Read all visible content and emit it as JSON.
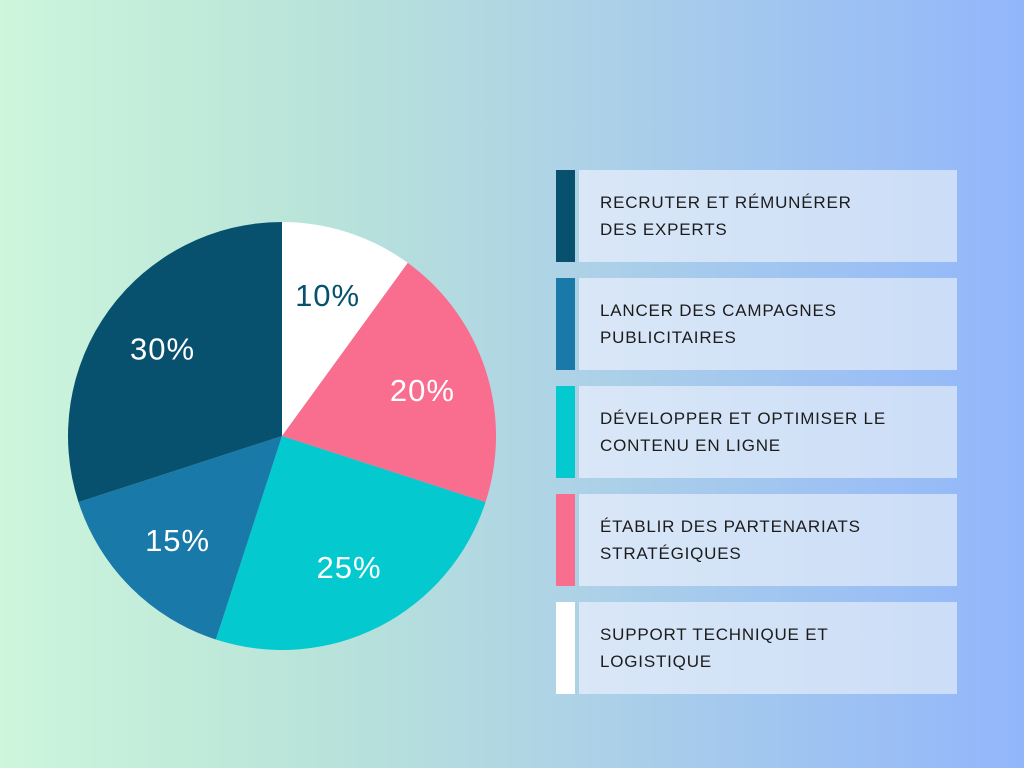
{
  "background": {
    "gradient_left": "#CDF6DC",
    "gradient_right": "#92B6FB"
  },
  "chart_data": {
    "type": "pie",
    "start_angle_deg": 0,
    "direction": "clockwise",
    "legend_position": "right",
    "slices": [
      {
        "label": "SUPPORT TECHNIQUE ET LOGISTIQUE",
        "value": 10,
        "label_text": "10%",
        "color": "#FFFFFF",
        "label_color": "#07516F"
      },
      {
        "label": "ÉTABLIR DES PARTENARIATS STRATÉGIQUES",
        "value": 20,
        "label_text": "20%",
        "color": "#F96D8E",
        "label_color": "#FFFFFF"
      },
      {
        "label": "DÉVELOPPER ET OPTIMISER LE CONTENU EN LIGNE",
        "value": 25,
        "label_text": "25%",
        "color": "#04C9CE",
        "label_color": "#FFFFFF"
      },
      {
        "label": "LANCER DES CAMPAGNES PUBLICITAIRES",
        "value": 15,
        "label_text": "15%",
        "color": "#1979A8",
        "label_color": "#FFFFFF"
      },
      {
        "label": "RECRUTER ET RÉMUNÉRER DES EXPERTS",
        "value": 30,
        "label_text": "30%",
        "color": "#07516F",
        "label_color": "#FFFFFF"
      }
    ]
  },
  "legend": {
    "items": [
      {
        "color": "#07516F",
        "lines": [
          "RECRUTER ET RÉMUNÉRER",
          "DES EXPERTS"
        ]
      },
      {
        "color": "#1979A8",
        "lines": [
          "LANCER DES CAMPAGNES",
          "PUBLICITAIRES"
        ]
      },
      {
        "color": "#04C9CE",
        "lines": [
          "DÉVELOPPER ET OPTIMISER LE",
          "CONTENU EN LIGNE"
        ]
      },
      {
        "color": "#F96D8E",
        "lines": [
          "ÉTABLIR DES PARTENARIATS",
          "STRATÉGIQUES"
        ]
      },
      {
        "color": "#FFFFFF",
        "lines": [
          "SUPPORT TECHNIQUE ET",
          "LOGISTIQUE"
        ]
      }
    ]
  }
}
